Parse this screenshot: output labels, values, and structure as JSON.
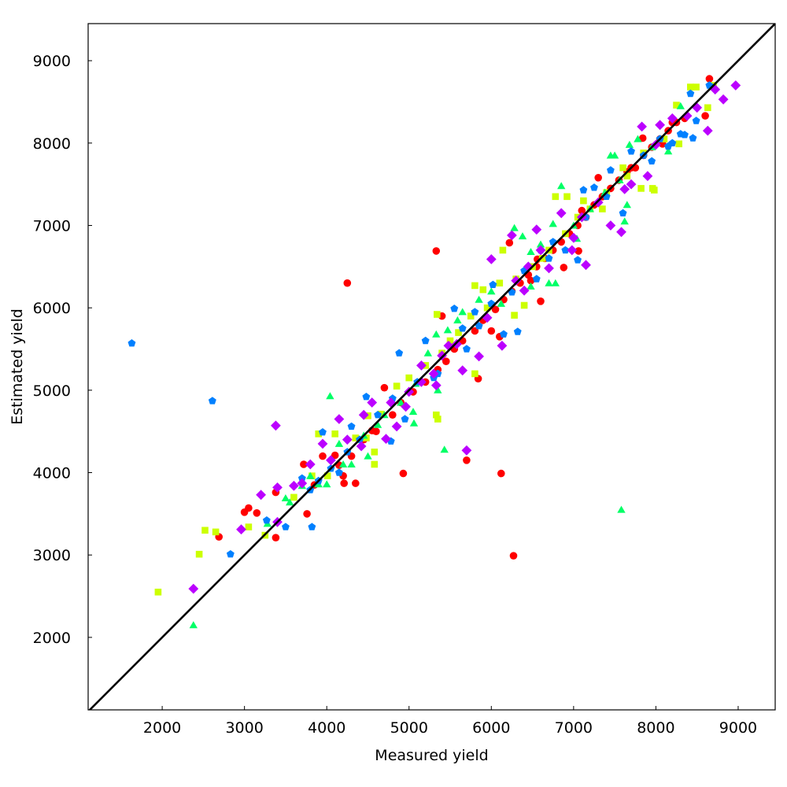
{
  "chart_data": {
    "type": "scatter",
    "title": "",
    "xlabel": "Measured yield",
    "ylabel": "Estimated yield",
    "xlim": [
      1100,
      9450
    ],
    "ylim": [
      1120,
      9450
    ],
    "xticks": [
      2000,
      3000,
      4000,
      5000,
      6000,
      7000,
      8000,
      9000
    ],
    "yticks": [
      2000,
      3000,
      4000,
      5000,
      6000,
      7000,
      8000,
      9000
    ],
    "grid": false,
    "legend": "none",
    "reference_line": {
      "type": "identity",
      "color": "#000000"
    },
    "series": [
      {
        "marker": "circle",
        "color": "#ff0000",
        "points": [
          [
            4250,
            6300
          ],
          [
            5330,
            6690
          ],
          [
            4930,
            3990
          ],
          [
            5700,
            4150
          ],
          [
            6120,
            3990
          ],
          [
            6270,
            2990
          ],
          [
            3380,
            3210
          ],
          [
            2690,
            3220
          ],
          [
            3000,
            3520
          ],
          [
            3150,
            3510
          ],
          [
            3050,
            3570
          ],
          [
            3760,
            3500
          ],
          [
            4210,
            3870
          ],
          [
            4350,
            3870
          ],
          [
            4200,
            3960
          ],
          [
            5840,
            5140
          ],
          [
            4700,
            5030
          ],
          [
            3380,
            3760
          ],
          [
            3720,
            4100
          ],
          [
            3850,
            3850
          ],
          [
            4150,
            4090
          ],
          [
            4300,
            4200
          ],
          [
            4450,
            4400
          ],
          [
            4600,
            4500
          ],
          [
            4800,
            4700
          ],
          [
            4900,
            4850
          ],
          [
            5050,
            4980
          ],
          [
            5200,
            5100
          ],
          [
            5350,
            5250
          ],
          [
            5450,
            5350
          ],
          [
            5550,
            5500
          ],
          [
            5650,
            5600
          ],
          [
            5800,
            5720
          ],
          [
            5900,
            5850
          ],
          [
            6050,
            5980
          ],
          [
            6150,
            6100
          ],
          [
            6250,
            6200
          ],
          [
            6350,
            6300
          ],
          [
            6450,
            6400
          ],
          [
            6550,
            6500
          ],
          [
            6650,
            6600
          ],
          [
            6750,
            6700
          ],
          [
            6850,
            6800
          ],
          [
            6950,
            6900
          ],
          [
            7050,
            7000
          ],
          [
            7150,
            7100
          ],
          [
            7250,
            7250
          ],
          [
            7350,
            7350
          ],
          [
            7450,
            7450
          ],
          [
            7550,
            7550
          ],
          [
            7650,
            7650
          ],
          [
            7750,
            7700
          ],
          [
            7850,
            7850
          ],
          [
            7950,
            7950
          ],
          [
            8050,
            8050
          ],
          [
            8150,
            8150
          ],
          [
            8250,
            8250
          ],
          [
            8350,
            8300
          ],
          [
            8600,
            8330
          ],
          [
            8650,
            8780
          ],
          [
            6220,
            6790
          ],
          [
            6600,
            6080
          ],
          [
            7060,
            6690
          ],
          [
            6880,
            6490
          ],
          [
            6100,
            5650
          ],
          [
            6000,
            5720
          ],
          [
            5400,
            5900
          ],
          [
            4550,
            4510
          ],
          [
            4100,
            4210
          ],
          [
            3950,
            4200
          ],
          [
            7100,
            7180
          ],
          [
            7300,
            7580
          ],
          [
            7700,
            7700
          ],
          [
            8080,
            7990
          ],
          [
            8200,
            8250
          ],
          [
            7840,
            8060
          ],
          [
            6560,
            6590
          ],
          [
            6480,
            6330
          ]
        ]
      },
      {
        "marker": "square",
        "color": "#ccff00",
        "points": [
          [
            1950,
            2550
          ],
          [
            2450,
            3010
          ],
          [
            2520,
            3300
          ],
          [
            2650,
            3280
          ],
          [
            3050,
            3340
          ],
          [
            3250,
            3240
          ],
          [
            4580,
            4100
          ],
          [
            4580,
            4250
          ],
          [
            5330,
            4700
          ],
          [
            5350,
            4650
          ],
          [
            5800,
            5200
          ],
          [
            5340,
            5920
          ],
          [
            3900,
            4470
          ],
          [
            4100,
            4470
          ],
          [
            4350,
            4420
          ],
          [
            4500,
            4690
          ],
          [
            4850,
            5050
          ],
          [
            5000,
            5150
          ],
          [
            5200,
            5300
          ],
          [
            5400,
            5450
          ],
          [
            5600,
            5700
          ],
          [
            5750,
            5900
          ],
          [
            5800,
            6270
          ],
          [
            5900,
            6220
          ],
          [
            6100,
            6300
          ],
          [
            6300,
            6350
          ],
          [
            6500,
            6500
          ],
          [
            6700,
            6700
          ],
          [
            6780,
            7350
          ],
          [
            6920,
            7350
          ],
          [
            7050,
            7100
          ],
          [
            7200,
            7200
          ],
          [
            7400,
            7400
          ],
          [
            7650,
            7600
          ],
          [
            7820,
            7450
          ],
          [
            7960,
            7450
          ],
          [
            7980,
            7430
          ],
          [
            8100,
            8050
          ],
          [
            8280,
            7990
          ],
          [
            8250,
            8460
          ],
          [
            8420,
            8680
          ],
          [
            8490,
            8680
          ],
          [
            8630,
            8430
          ],
          [
            8700,
            8700
          ],
          [
            7850,
            7880
          ],
          [
            7600,
            7700
          ],
          [
            6400,
            6030
          ],
          [
            6280,
            5910
          ],
          [
            4660,
            4710
          ],
          [
            4480,
            4420
          ],
          [
            4010,
            3960
          ],
          [
            3820,
            3960
          ],
          [
            3600,
            3700
          ],
          [
            6620,
            6600
          ],
          [
            6900,
            6900
          ],
          [
            7120,
            7300
          ],
          [
            5500,
            5600
          ],
          [
            5950,
            6000
          ],
          [
            6140,
            6700
          ],
          [
            7350,
            7200
          ]
        ]
      },
      {
        "marker": "triangle",
        "color": "#00ff66",
        "points": [
          [
            2380,
            2150
          ],
          [
            3280,
            3380
          ],
          [
            3500,
            3690
          ],
          [
            3550,
            3640
          ],
          [
            3900,
            3860
          ],
          [
            4000,
            3860
          ],
          [
            4040,
            4930
          ],
          [
            4200,
            4100
          ],
          [
            4300,
            4100
          ],
          [
            4500,
            4200
          ],
          [
            4700,
            4700
          ],
          [
            5060,
            4600
          ],
          [
            5050,
            4740
          ],
          [
            5230,
            5450
          ],
          [
            5330,
            5680
          ],
          [
            5430,
            4280
          ],
          [
            5590,
            5850
          ],
          [
            5650,
            5950
          ],
          [
            5850,
            6100
          ],
          [
            6000,
            6200
          ],
          [
            6280,
            6970
          ],
          [
            6380,
            6870
          ],
          [
            6480,
            6680
          ],
          [
            6700,
            6300
          ],
          [
            6780,
            6300
          ],
          [
            6850,
            7480
          ],
          [
            7000,
            7000
          ],
          [
            7200,
            7200
          ],
          [
            7380,
            7400
          ],
          [
            7450,
            7850
          ],
          [
            7500,
            7850
          ],
          [
            7560,
            7550
          ],
          [
            7580,
            3550
          ],
          [
            7620,
            7050
          ],
          [
            7680,
            7980
          ],
          [
            7780,
            8050
          ],
          [
            7950,
            7950
          ],
          [
            8150,
            7900
          ],
          [
            8300,
            8450
          ],
          [
            7650,
            7250
          ],
          [
            6750,
            7020
          ],
          [
            6480,
            6260
          ],
          [
            6120,
            6050
          ],
          [
            5470,
            5730
          ],
          [
            5080,
            5080
          ],
          [
            4900,
            4850
          ],
          [
            4620,
            4580
          ],
          [
            4450,
            4450
          ],
          [
            4150,
            4350
          ],
          [
            3800,
            3960
          ],
          [
            3700,
            3840
          ],
          [
            5350,
            5000
          ],
          [
            6600,
            6770
          ],
          [
            7040,
            6840
          ]
        ]
      },
      {
        "marker": "pentagon",
        "color": "#0080ff",
        "points": [
          [
            1630,
            5570
          ],
          [
            2610,
            4870
          ],
          [
            2830,
            3010
          ],
          [
            3270,
            3420
          ],
          [
            3500,
            3340
          ],
          [
            3820,
            3340
          ],
          [
            3700,
            3930
          ],
          [
            3800,
            3790
          ],
          [
            3950,
            4490
          ],
          [
            4150,
            4000
          ],
          [
            4250,
            4250
          ],
          [
            4400,
            4400
          ],
          [
            4620,
            4700
          ],
          [
            4780,
            4380
          ],
          [
            4880,
            5450
          ],
          [
            4950,
            4650
          ],
          [
            5100,
            5100
          ],
          [
            5200,
            5600
          ],
          [
            5350,
            5200
          ],
          [
            5550,
            5990
          ],
          [
            5700,
            5500
          ],
          [
            5850,
            5780
          ],
          [
            6000,
            6050
          ],
          [
            6150,
            5680
          ],
          [
            6320,
            5710
          ],
          [
            6400,
            6450
          ],
          [
            6600,
            6700
          ],
          [
            6750,
            6800
          ],
          [
            6900,
            6700
          ],
          [
            7050,
            6580
          ],
          [
            7120,
            7430
          ],
          [
            7250,
            7460
          ],
          [
            7400,
            7350
          ],
          [
            7600,
            7150
          ],
          [
            7700,
            7900
          ],
          [
            7850,
            7850
          ],
          [
            7950,
            7780
          ],
          [
            8050,
            8050
          ],
          [
            8150,
            7960
          ],
          [
            8300,
            8110
          ],
          [
            8420,
            8600
          ],
          [
            8490,
            8270
          ],
          [
            8650,
            8700
          ],
          [
            8450,
            8060
          ],
          [
            8350,
            8100
          ],
          [
            8200,
            8000
          ],
          [
            7450,
            7670
          ],
          [
            7150,
            7100
          ],
          [
            6550,
            6350
          ],
          [
            6250,
            6190
          ],
          [
            5650,
            5750
          ],
          [
            5300,
            5150
          ],
          [
            4800,
            4900
          ],
          [
            4480,
            4920
          ],
          [
            4300,
            4560
          ],
          [
            4050,
            4050
          ],
          [
            3900,
            3900
          ],
          [
            5800,
            5950
          ],
          [
            6020,
            6280
          ],
          [
            6700,
            6600
          ]
        ]
      },
      {
        "marker": "diamond",
        "color": "#bb00ff",
        "points": [
          [
            2380,
            2590
          ],
          [
            2960,
            3310
          ],
          [
            3400,
            3400
          ],
          [
            3200,
            3730
          ],
          [
            3380,
            4570
          ],
          [
            3400,
            3820
          ],
          [
            3600,
            3840
          ],
          [
            3800,
            4100
          ],
          [
            3950,
            4350
          ],
          [
            4150,
            4650
          ],
          [
            4250,
            4400
          ],
          [
            4450,
            4700
          ],
          [
            4550,
            4850
          ],
          [
            4720,
            4410
          ],
          [
            4850,
            4560
          ],
          [
            5000,
            4980
          ],
          [
            5150,
            5300
          ],
          [
            5300,
            5200
          ],
          [
            5330,
            5060
          ],
          [
            5480,
            5540
          ],
          [
            5650,
            5240
          ],
          [
            5700,
            4270
          ],
          [
            5850,
            5410
          ],
          [
            6000,
            6590
          ],
          [
            6130,
            5540
          ],
          [
            6250,
            6880
          ],
          [
            6400,
            6210
          ],
          [
            6550,
            6950
          ],
          [
            6700,
            6480
          ],
          [
            6850,
            7150
          ],
          [
            7000,
            6850
          ],
          [
            7150,
            6520
          ],
          [
            7300,
            7280
          ],
          [
            7450,
            7000
          ],
          [
            7580,
            6920
          ],
          [
            7700,
            7500
          ],
          [
            7830,
            8200
          ],
          [
            7900,
            7600
          ],
          [
            8050,
            8220
          ],
          [
            8200,
            8300
          ],
          [
            8380,
            8330
          ],
          [
            8500,
            8430
          ],
          [
            8630,
            8150
          ],
          [
            8720,
            8650
          ],
          [
            8820,
            8530
          ],
          [
            8970,
            8700
          ],
          [
            8000,
            7980
          ],
          [
            7620,
            7440
          ],
          [
            7100,
            7100
          ],
          [
            6600,
            6700
          ],
          [
            6300,
            6330
          ],
          [
            5950,
            5880
          ],
          [
            5580,
            5560
          ],
          [
            5150,
            5100
          ],
          [
            4780,
            4850
          ],
          [
            4420,
            4320
          ],
          [
            4050,
            4150
          ],
          [
            3700,
            3870
          ],
          [
            6450,
            6500
          ],
          [
            6980,
            6700
          ],
          [
            5400,
            5420
          ],
          [
            4960,
            4800
          ]
        ]
      }
    ]
  }
}
